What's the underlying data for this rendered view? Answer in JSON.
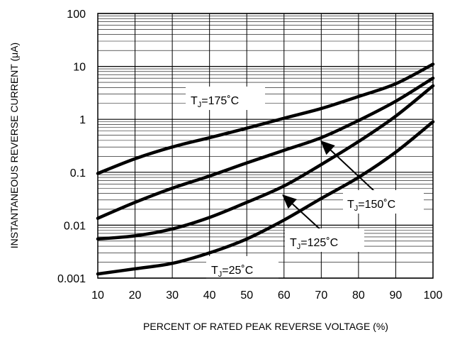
{
  "chart_data": {
    "type": "line",
    "xlabel": "PERCENT OF RATED PEAK REVERSE VOLTAGE (%)",
    "ylabel": "INSTANTANEOUS REVERSE CURRENT (μA)",
    "x_scale": "linear",
    "y_scale": "log",
    "xlim": [
      10,
      100
    ],
    "ylim": [
      0.001,
      100
    ],
    "grid": true,
    "x_ticks": [
      "10",
      "20",
      "30",
      "40",
      "50",
      "60",
      "70",
      "80",
      "90",
      "100"
    ],
    "y_ticks": [
      "0.001",
      "0.01",
      "0.1",
      "1",
      "10",
      "100"
    ],
    "series": [
      {
        "id": "tj175",
        "x": [
          10,
          20,
          30,
          40,
          50,
          60,
          70,
          80,
          90,
          100
        ],
        "values": [
          0.095,
          0.18,
          0.3,
          0.45,
          0.68,
          1.05,
          1.6,
          2.7,
          4.7,
          11
        ]
      },
      {
        "id": "tj150",
        "x": [
          10,
          20,
          30,
          40,
          50,
          60,
          70,
          80,
          90,
          100
        ],
        "values": [
          0.0135,
          0.027,
          0.05,
          0.085,
          0.15,
          0.26,
          0.45,
          0.95,
          2.2,
          6
        ]
      },
      {
        "id": "tj125",
        "x": [
          10,
          20,
          30,
          40,
          50,
          60,
          70,
          80,
          90,
          100
        ],
        "values": [
          0.0055,
          0.0063,
          0.0085,
          0.014,
          0.027,
          0.055,
          0.14,
          0.38,
          1.15,
          4.3
        ]
      },
      {
        "id": "tj25",
        "x": [
          10,
          20,
          30,
          40,
          50,
          60,
          70,
          80,
          90,
          100
        ],
        "values": [
          0.0012,
          0.0015,
          0.0019,
          0.003,
          0.0055,
          0.0125,
          0.032,
          0.08,
          0.24,
          0.9
        ]
      }
    ],
    "annotations": [
      {
        "series": "tj175",
        "prefix": "T",
        "subscript": "J",
        "suffix": "=175˚C"
      },
      {
        "series": "tj150",
        "prefix": "T",
        "subscript": "J",
        "suffix": "=150˚C"
      },
      {
        "series": "tj125",
        "prefix": "T",
        "subscript": "J",
        "suffix": "=125˚C"
      },
      {
        "series": "tj25",
        "prefix": "T",
        "subscript": "J",
        "suffix": "=25˚C"
      }
    ]
  }
}
